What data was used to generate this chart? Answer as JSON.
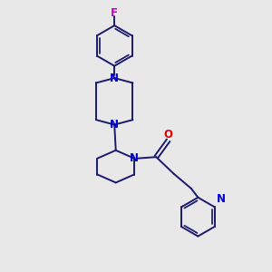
{
  "bg_color": "#e8e8e8",
  "bond_color": "#1a1a6e",
  "N_color": "#0000cc",
  "F_color": "#cc00cc",
  "O_color": "#dd0000",
  "bond_width": 1.4,
  "fig_size": [
    3.0,
    3.0
  ],
  "dpi": 100,
  "xlim": [
    0,
    10
  ],
  "ylim": [
    0,
    10
  ]
}
